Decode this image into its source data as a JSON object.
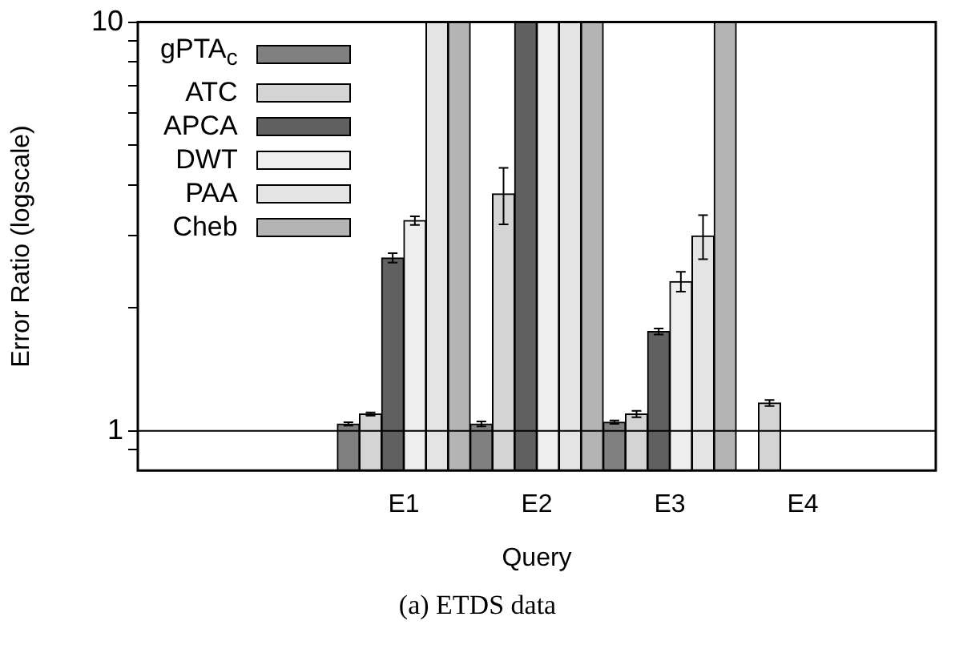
{
  "chart_data": {
    "type": "bar",
    "xlabel": "Query",
    "ylabel": "Error Ratio (logscale)",
    "categories": [
      null,
      null,
      "E1",
      "E2",
      "E3",
      "E4",
      null
    ],
    "series": [
      {
        "name": "gPTA$_{c}$",
        "color": "#808080",
        "values": [
          null,
          null,
          1.04,
          1.04,
          1.05,
          null,
          null
        ],
        "errors": [
          null,
          null,
          0.01,
          0.015,
          0.01,
          null,
          null
        ]
      },
      {
        "name": "ATC",
        "color": "#d4d4d4",
        "values": [
          null,
          null,
          1.1,
          3.8,
          1.1,
          1.17,
          null
        ],
        "errors": [
          null,
          null,
          0.01,
          0.6,
          0.02,
          0.02,
          null
        ]
      },
      {
        "name": "APCA",
        "color": "#606060",
        "values": [
          null,
          null,
          2.65,
          10,
          1.75,
          null,
          null
        ],
        "errors": [
          null,
          null,
          0.07,
          null,
          0.03,
          null,
          null
        ]
      },
      {
        "name": "DWT",
        "color": "#eeeeee",
        "values": [
          null,
          null,
          3.27,
          10,
          2.32,
          null,
          null
        ],
        "errors": [
          null,
          null,
          0.08,
          null,
          0.13,
          null,
          null
        ]
      },
      {
        "name": "PAA",
        "color": "#e4e4e4",
        "values": [
          null,
          null,
          10,
          10,
          3.0,
          null,
          null
        ],
        "errors": [
          null,
          null,
          null,
          null,
          0.37,
          null,
          null
        ]
      },
      {
        "name": "Cheb",
        "color": "#b4b4b4",
        "values": [
          null,
          null,
          10,
          10,
          10,
          null,
          null
        ]
      }
    ],
    "log": true,
    "ylim": [
      0.8,
      10
    ],
    "yticks": [
      {
        "value": 0.9,
        "label": null
      },
      1,
      {
        "value": 2,
        "label": null
      },
      {
        "value": 3,
        "label": null
      },
      {
        "value": 4,
        "label": null
      },
      {
        "value": 5,
        "label": null
      },
      {
        "value": 6,
        "label": null
      },
      {
        "value": 7,
        "label": null
      },
      {
        "value": 8,
        "label": null
      },
      {
        "value": 9,
        "label": null
      },
      10
    ],
    "ref_lines": [
      {
        "axis": "y",
        "value": 1,
        "color": "#000000"
      }
    ],
    "grid": false,
    "legend": "top left",
    "annotations": [
      "(a)  ETDS data"
    ]
  }
}
